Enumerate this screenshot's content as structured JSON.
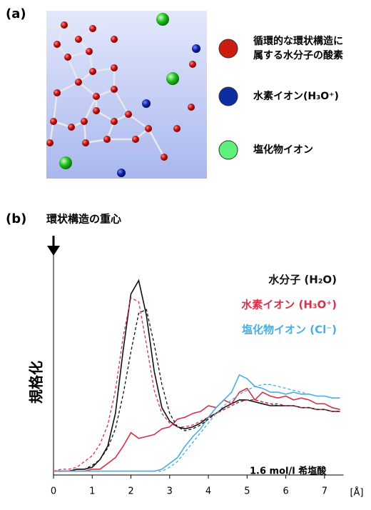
{
  "panel_a": {
    "label": "(a)",
    "legend": [
      "循環的な環状構造に",
      "属する水分子の酸素",
      "水素イオン(H₃O⁺)",
      "塩化物イオン"
    ]
  },
  "chart_data": {
    "type": "line",
    "panel_label": "(b)",
    "annotation_top": "環状構造の重心",
    "y_label": "規格化",
    "x_label": "[Å]",
    "note": "1.6 mol/l 希塩酸",
    "xlim": [
      0,
      7.5
    ],
    "ylim": [
      -0.02,
      1.13
    ],
    "xticks": [
      0,
      1,
      2,
      3,
      4,
      5,
      6,
      7
    ],
    "x": [
      0,
      0.2,
      0.4,
      0.6,
      0.8,
      1.0,
      1.2,
      1.4,
      1.6,
      1.8,
      2.0,
      2.2,
      2.4,
      2.6,
      2.8,
      3.0,
      3.2,
      3.4,
      3.6,
      3.8,
      4.0,
      4.2,
      4.4,
      4.6,
      4.8,
      5.0,
      5.2,
      5.4,
      5.6,
      5.8,
      6.0,
      6.2,
      6.4,
      6.6,
      6.8,
      7.0,
      7.2,
      7.4
    ],
    "series": [
      {
        "name": "水分子 (H₂O)",
        "color": "#111111",
        "dashed": false,
        "values": [
          0,
          0,
          0,
          0.01,
          0.01,
          0.02,
          0.06,
          0.13,
          0.3,
          0.63,
          0.92,
          0.99,
          0.81,
          0.52,
          0.33,
          0.26,
          0.23,
          0.22,
          0.23,
          0.25,
          0.28,
          0.3,
          0.33,
          0.35,
          0.37,
          0.37,
          0.36,
          0.35,
          0.34,
          0.34,
          0.34,
          0.34,
          0.33,
          0.33,
          0.32,
          0.32,
          0.31,
          0.31
        ]
      },
      {
        "name": "水素イオン (H₃O⁺)",
        "color": "#d6304a",
        "dashed": false,
        "values": [
          0,
          0,
          0,
          0,
          0,
          0.01,
          0.01,
          0.04,
          0.07,
          0.13,
          0.2,
          0.17,
          0.18,
          0.19,
          0.22,
          0.23,
          0.27,
          0.28,
          0.3,
          0.31,
          0.34,
          0.33,
          0.37,
          0.35,
          0.41,
          0.43,
          0.37,
          0.41,
          0.39,
          0.38,
          0.39,
          0.37,
          0.38,
          0.37,
          0.35,
          0.35,
          0.33,
          0.32
        ]
      },
      {
        "name": "塩化物イオン (Cl⁻)",
        "color": "#4aaee0",
        "dashed": false,
        "values": [
          0,
          0,
          0,
          0,
          0,
          0,
          0,
          0,
          0,
          0,
          0,
          0,
          0,
          0,
          0.01,
          0.04,
          0.07,
          0.13,
          0.18,
          0.22,
          0.28,
          0.33,
          0.37,
          0.41,
          0.5,
          0.48,
          0.44,
          0.43,
          0.41,
          0.41,
          0.4,
          0.41,
          0.4,
          0.4,
          0.39,
          0.39,
          0.38,
          0.38
        ]
      },
      {
        "color": "#111111",
        "dashed": true,
        "values": [
          0,
          0,
          0,
          0.01,
          0.01,
          0.03,
          0.06,
          0.12,
          0.22,
          0.4,
          0.62,
          0.82,
          0.84,
          0.66,
          0.45,
          0.3,
          0.23,
          0.21,
          0.22,
          0.24,
          0.27,
          0.3,
          0.32,
          0.34,
          0.36,
          0.37,
          0.37,
          0.36,
          0.35,
          0.34,
          0.34,
          0.34,
          0.33,
          0.33,
          0.32,
          0.32,
          0.31,
          0.31
        ]
      },
      {
        "color": "#d6304a",
        "dashed": true,
        "values": [
          0,
          0.01,
          0.01,
          0.02,
          0.05,
          0.08,
          0.14,
          0.24,
          0.42,
          0.7,
          0.9,
          0.88,
          0.66,
          0.42,
          0.3,
          0.25,
          0.23,
          0.23,
          0.24,
          0.26,
          0.28,
          0.3,
          0.32,
          0.34,
          0.36,
          0.37,
          0.37,
          0.36,
          0.35,
          0.35,
          0.34,
          0.34,
          0.33,
          0.33,
          0.32,
          0.32,
          0.31,
          0.31
        ]
      },
      {
        "color": "#4aaee0",
        "dashed": true,
        "values": [
          0,
          0,
          0,
          0,
          0,
          0,
          0,
          0,
          0,
          0,
          0,
          0,
          0,
          0,
          0,
          0.02,
          0.05,
          0.1,
          0.15,
          0.2,
          0.25,
          0.3,
          0.34,
          0.37,
          0.4,
          0.42,
          0.44,
          0.45,
          0.45,
          0.44,
          0.43,
          0.42,
          0.41,
          0.4,
          0.39,
          0.39,
          0.38,
          0.38
        ]
      }
    ]
  }
}
